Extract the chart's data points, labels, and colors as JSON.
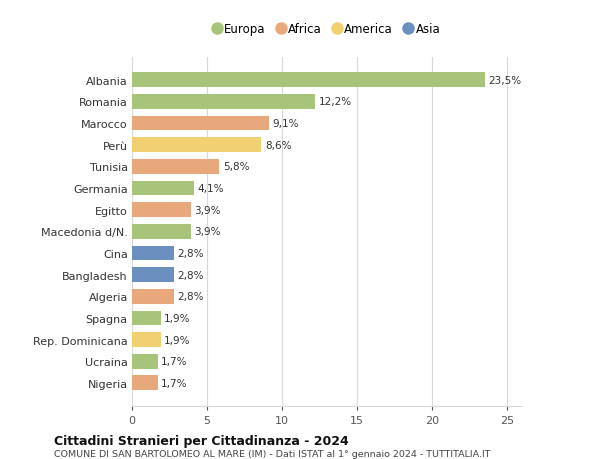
{
  "countries": [
    "Albania",
    "Romania",
    "Marocco",
    "Perù",
    "Tunisia",
    "Germania",
    "Egitto",
    "Macedonia d/N.",
    "Cina",
    "Bangladesh",
    "Algeria",
    "Spagna",
    "Rep. Dominicana",
    "Ucraina",
    "Nigeria"
  ],
  "values": [
    23.5,
    12.2,
    9.1,
    8.6,
    5.8,
    4.1,
    3.9,
    3.9,
    2.8,
    2.8,
    2.8,
    1.9,
    1.9,
    1.7,
    1.7
  ],
  "labels": [
    "23,5%",
    "12,2%",
    "9,1%",
    "8,6%",
    "5,8%",
    "4,1%",
    "3,9%",
    "3,9%",
    "2,8%",
    "2,8%",
    "2,8%",
    "1,9%",
    "1,9%",
    "1,7%",
    "1,7%"
  ],
  "continents": [
    "Europa",
    "Europa",
    "Africa",
    "America",
    "Africa",
    "Europa",
    "Africa",
    "Europa",
    "Asia",
    "Asia",
    "Africa",
    "Europa",
    "America",
    "Europa",
    "Africa"
  ],
  "colors": {
    "Europa": "#a8c47a",
    "Africa": "#e8a87c",
    "America": "#f0d070",
    "Asia": "#6b8fbf"
  },
  "legend_order": [
    "Europa",
    "Africa",
    "America",
    "Asia"
  ],
  "title": "Cittadini Stranieri per Cittadinanza - 2024",
  "subtitle": "COMUNE DI SAN BARTOLOMEO AL MARE (IM) - Dati ISTAT al 1° gennaio 2024 - TUTTITALIA.IT",
  "xlim": [
    0,
    26
  ],
  "xticks": [
    0,
    5,
    10,
    15,
    20,
    25
  ],
  "background_color": "#ffffff",
  "grid_color": "#d8d8d8"
}
